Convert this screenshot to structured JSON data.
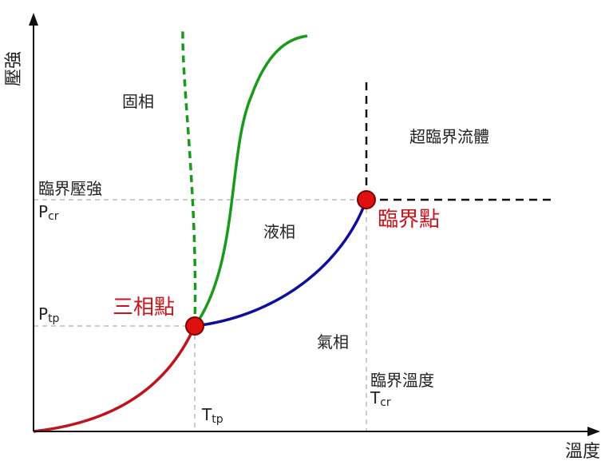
{
  "axes": {
    "x_label": "溫度",
    "y_label": "壓強"
  },
  "regions": {
    "solid": "固相",
    "liquid": "液相",
    "gas": "氣相",
    "supercritical": "超臨界流體"
  },
  "points": {
    "triple_point": {
      "label": "三相點"
    },
    "critical_point": {
      "label": "臨界點"
    }
  },
  "reference_labels": {
    "critical_pressure": "臨界壓強",
    "critical_temperature": "臨界溫度",
    "p_cr_main": "P",
    "p_cr_sub": "cr",
    "p_tp_main": "P",
    "p_tp_sub": "tp",
    "t_tp_main": "T",
    "t_tp_sub": "tp",
    "t_cr_main": "T",
    "t_cr_sub": "cr"
  },
  "colors": {
    "axis": "#111111",
    "sublimation_curve": "#c0141c",
    "vaporization_curve": "#0d0d9e",
    "melting_curve": "#1a9a1a",
    "anomalous_melting_curve": "#1a9a1a",
    "supercritical_boundary": "#111111",
    "reference_lines": "#cccccc",
    "point_fill": "#e01010",
    "point_stroke": "#7a0000",
    "point_label": "#c8141c"
  }
}
